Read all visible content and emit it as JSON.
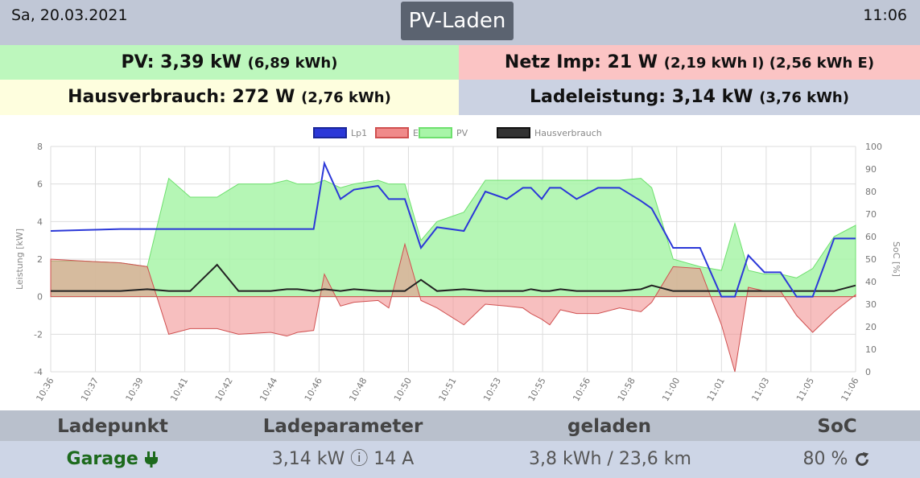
{
  "header": {
    "date": "Sa, 20.03.2021",
    "title": "PV-Laden",
    "time": "11:06"
  },
  "summary": {
    "pv_label": "PV: 3,39 kW",
    "pv_energy": "(6,89 kWh)",
    "netz_label": "Netz Imp: 21 W",
    "netz_energy": "(2,19 kWh I) (2,56 kWh E)",
    "haus_label": "Hausverbrauch: 272 W",
    "haus_energy": "(2,76 kWh)",
    "lade_label": "Ladeleistung: 3,14 kW",
    "lade_energy": "(3,76 kWh)"
  },
  "colors": {
    "lp1": "#2b38d8",
    "evu_fill": "#f08a8a",
    "evu_line": "#d05050",
    "pv_fill": "#a8f5a8",
    "pv_line": "#6ee06e",
    "haus": "#222222",
    "grid": "#dddddd"
  },
  "chart_data": {
    "type": "line",
    "legend": [
      "Lp1",
      "EVU",
      "PV",
      "Hausverbrauch"
    ],
    "legend_position": "top",
    "ylabel": "Leistung [kW]",
    "y2label": "SoC [%]",
    "ylim": [
      -4,
      8
    ],
    "y2lim": [
      0,
      100
    ],
    "yticks": [
      "8",
      "6",
      "4",
      "2",
      "0",
      "-2",
      "-4"
    ],
    "y2ticks": [
      "100",
      "90",
      "80",
      "70",
      "60",
      "50",
      "40",
      "30",
      "20",
      "10",
      "0"
    ],
    "xticks": [
      "10:36",
      "10:37",
      "10:39",
      "10:41",
      "10:42",
      "10:44",
      "10:46",
      "10:48",
      "10:50",
      "10:51",
      "10:53",
      "10:55",
      "10:56",
      "10:58",
      "11:00",
      "11:01",
      "11:03",
      "11:05",
      "11:06"
    ],
    "x_minutes": [
      0,
      1.2,
      2.6,
      3.6,
      4.4,
      5.2,
      6.2,
      7.0,
      8.2,
      8.8,
      9.2,
      9.8,
      10.2,
      10.8,
      11.3,
      12.2,
      12.6,
      13.2,
      13.8,
      14.4,
      15.4,
      16.2,
      17.0,
      17.6,
      17.9,
      18.3,
      18.6,
      19.0,
      19.6,
      20.4,
      21.2,
      22.0,
      22.4,
      23.2,
      24.2,
      25.0,
      25.5,
      26.0,
      26.6,
      27.2,
      27.8,
      28.4,
      29.2,
      30.0
    ],
    "series": [
      {
        "name": "Lp1",
        "values": [
          3.5,
          3.55,
          3.6,
          3.6,
          3.6,
          3.6,
          3.6,
          3.6,
          3.6,
          3.6,
          3.6,
          3.6,
          7.1,
          5.2,
          5.7,
          5.9,
          5.2,
          5.2,
          2.6,
          3.7,
          3.5,
          5.6,
          5.2,
          5.8,
          5.8,
          5.2,
          5.8,
          5.8,
          5.2,
          5.8,
          5.8,
          5.1,
          4.7,
          2.6,
          2.6,
          0.0,
          0.0,
          2.2,
          1.3,
          1.3,
          0.0,
          0.0,
          3.1,
          3.1
        ]
      },
      {
        "name": "EVU",
        "values": [
          2.0,
          1.9,
          1.8,
          1.6,
          -2.0,
          -1.7,
          -1.7,
          -2.0,
          -1.9,
          -2.1,
          -1.9,
          -1.8,
          1.2,
          -0.5,
          -0.3,
          -0.2,
          -0.6,
          2.8,
          -0.2,
          -0.6,
          -1.5,
          -0.4,
          -0.5,
          -0.6,
          -0.9,
          -1.2,
          -1.5,
          -0.7,
          -0.9,
          -0.9,
          -0.6,
          -0.8,
          -0.3,
          1.6,
          1.5,
          -1.5,
          -4.0,
          0.5,
          0.3,
          0.3,
          -1.0,
          -1.9,
          -0.8,
          0.1
        ]
      },
      {
        "name": "PV",
        "values": [
          1.9,
          1.9,
          1.8,
          1.6,
          6.3,
          5.3,
          5.3,
          6.0,
          6.0,
          6.2,
          6.0,
          6.0,
          6.2,
          5.8,
          6.0,
          6.2,
          6.0,
          6.0,
          3.0,
          4.0,
          4.5,
          6.2,
          6.2,
          6.2,
          6.2,
          6.2,
          6.2,
          6.2,
          6.2,
          6.2,
          6.2,
          6.3,
          5.8,
          2.0,
          1.6,
          1.4,
          3.9,
          1.4,
          1.2,
          1.2,
          1.0,
          1.5,
          3.2,
          3.8
        ]
      },
      {
        "name": "Hausverbrauch",
        "values": [
          0.3,
          0.3,
          0.3,
          0.4,
          0.3,
          0.3,
          1.7,
          0.3,
          0.3,
          0.4,
          0.4,
          0.3,
          0.4,
          0.3,
          0.4,
          0.3,
          0.3,
          0.3,
          0.9,
          0.3,
          0.4,
          0.3,
          0.3,
          0.3,
          0.4,
          0.3,
          0.3,
          0.4,
          0.3,
          0.3,
          0.3,
          0.4,
          0.6,
          0.3,
          0.3,
          0.3,
          0.3,
          0.3,
          0.3,
          0.3,
          0.3,
          0.3,
          0.3,
          0.6
        ]
      }
    ]
  },
  "ladepunkt": {
    "headers": [
      "Ladepunkt",
      "Ladeparameter",
      "geladen",
      "SoC"
    ],
    "name": "Garage",
    "parameter": "3,14 kW ⓘ 14 A",
    "geladen": "3,8 kWh / 23,6 km",
    "soc": "80 %",
    "plug_icon": "plug-icon",
    "refresh_icon": "refresh-icon"
  }
}
